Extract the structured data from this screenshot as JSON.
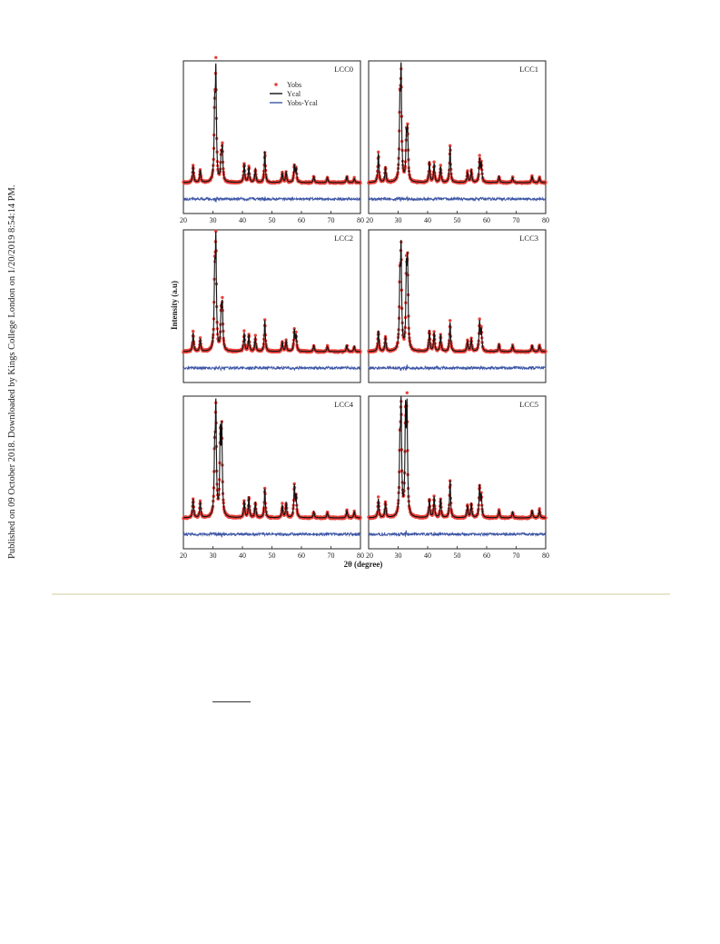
{
  "side_note": "Published on 09 October 2018. Downloaded by Kings College London on 1/20/2019 8:54:14 PM.",
  "chart_data": {
    "type": "line",
    "ylabel": "Intensity (a.u)",
    "xlabel": "2θ (degree)",
    "xlim": [
      20,
      80
    ],
    "xticks": [
      "20",
      "30",
      "40",
      "50",
      "60",
      "70",
      "80"
    ],
    "grid": false,
    "legend": {
      "placement": "top-center",
      "entries": [
        "Yobs",
        "Ycal",
        "Yobs-Ycal"
      ]
    },
    "colors": {
      "Yobs": "#e8413b",
      "Ycal": "#111111",
      "Yobs-Ycal": "#3d56a6"
    },
    "panels": [
      {
        "name": "LCC0",
        "peaks": [
          [
            23.3,
            0.16
          ],
          [
            25.7,
            0.12
          ],
          [
            30.6,
            0.62
          ],
          [
            31.0,
            1.0
          ],
          [
            32.8,
            0.22
          ],
          [
            33.2,
            0.3
          ],
          [
            40.6,
            0.18
          ],
          [
            42.2,
            0.15
          ],
          [
            44.4,
            0.13
          ],
          [
            47.6,
            0.3
          ],
          [
            53.5,
            0.09
          ],
          [
            54.8,
            0.1
          ],
          [
            57.6,
            0.16
          ],
          [
            58.2,
            0.13
          ],
          [
            64.2,
            0.06
          ],
          [
            68.8,
            0.05
          ],
          [
            75.4,
            0.06
          ],
          [
            77.9,
            0.04
          ]
        ]
      },
      {
        "name": "LCC1",
        "peaks": [
          [
            23.3,
            0.28
          ],
          [
            25.7,
            0.15
          ],
          [
            30.6,
            0.65
          ],
          [
            31.0,
            1.0
          ],
          [
            32.8,
            0.4
          ],
          [
            33.2,
            0.45
          ],
          [
            40.6,
            0.2
          ],
          [
            42.2,
            0.18
          ],
          [
            44.4,
            0.15
          ],
          [
            47.6,
            0.35
          ],
          [
            53.5,
            0.1
          ],
          [
            54.8,
            0.12
          ],
          [
            57.6,
            0.22
          ],
          [
            58.2,
            0.18
          ],
          [
            64.2,
            0.06
          ],
          [
            68.8,
            0.05
          ],
          [
            75.4,
            0.06
          ],
          [
            77.9,
            0.05
          ]
        ]
      },
      {
        "name": "LCC2",
        "peaks": [
          [
            23.3,
            0.18
          ],
          [
            25.7,
            0.12
          ],
          [
            30.6,
            0.65
          ],
          [
            31.0,
            1.0
          ],
          [
            32.8,
            0.35
          ],
          [
            33.2,
            0.4
          ],
          [
            40.6,
            0.18
          ],
          [
            42.2,
            0.16
          ],
          [
            44.4,
            0.14
          ],
          [
            47.6,
            0.3
          ],
          [
            53.5,
            0.09
          ],
          [
            54.8,
            0.1
          ],
          [
            57.6,
            0.2
          ],
          [
            58.2,
            0.15
          ],
          [
            64.2,
            0.06
          ],
          [
            68.8,
            0.05
          ],
          [
            75.4,
            0.06
          ],
          [
            77.9,
            0.05
          ]
        ]
      },
      {
        "name": "LCC3",
        "peaks": [
          [
            23.3,
            0.2
          ],
          [
            25.7,
            0.14
          ],
          [
            30.6,
            0.6
          ],
          [
            31.0,
            0.92
          ],
          [
            32.8,
            0.7
          ],
          [
            33.2,
            0.78
          ],
          [
            40.6,
            0.2
          ],
          [
            42.2,
            0.18
          ],
          [
            44.4,
            0.16
          ],
          [
            47.6,
            0.28
          ],
          [
            53.5,
            0.1
          ],
          [
            54.8,
            0.12
          ],
          [
            57.6,
            0.28
          ],
          [
            58.2,
            0.2
          ],
          [
            64.2,
            0.07
          ],
          [
            68.8,
            0.06
          ],
          [
            75.4,
            0.06
          ],
          [
            77.9,
            0.06
          ]
        ]
      },
      {
        "name": "LCC4",
        "peaks": [
          [
            23.3,
            0.18
          ],
          [
            25.7,
            0.15
          ],
          [
            30.6,
            0.55
          ],
          [
            31.0,
            1.0
          ],
          [
            32.5,
            0.75
          ],
          [
            33.0,
            0.8
          ],
          [
            40.6,
            0.16
          ],
          [
            42.2,
            0.2
          ],
          [
            44.4,
            0.15
          ],
          [
            47.6,
            0.28
          ],
          [
            53.5,
            0.12
          ],
          [
            54.8,
            0.14
          ],
          [
            57.6,
            0.3
          ],
          [
            58.2,
            0.2
          ],
          [
            64.2,
            0.06
          ],
          [
            68.8,
            0.05
          ],
          [
            75.4,
            0.07
          ],
          [
            77.9,
            0.06
          ]
        ]
      },
      {
        "name": "LCC5",
        "peaks": [
          [
            23.3,
            0.18
          ],
          [
            25.7,
            0.15
          ],
          [
            30.6,
            0.6
          ],
          [
            31.0,
            1.0
          ],
          [
            32.5,
            0.95
          ],
          [
            33.0,
            0.98
          ],
          [
            40.6,
            0.18
          ],
          [
            42.2,
            0.2
          ],
          [
            44.4,
            0.18
          ],
          [
            47.6,
            0.36
          ],
          [
            53.5,
            0.12
          ],
          [
            54.8,
            0.14
          ],
          [
            57.6,
            0.3
          ],
          [
            58.2,
            0.2
          ],
          [
            64.2,
            0.07
          ],
          [
            68.8,
            0.06
          ],
          [
            75.4,
            0.07
          ],
          [
            77.9,
            0.08
          ]
        ]
      }
    ]
  }
}
